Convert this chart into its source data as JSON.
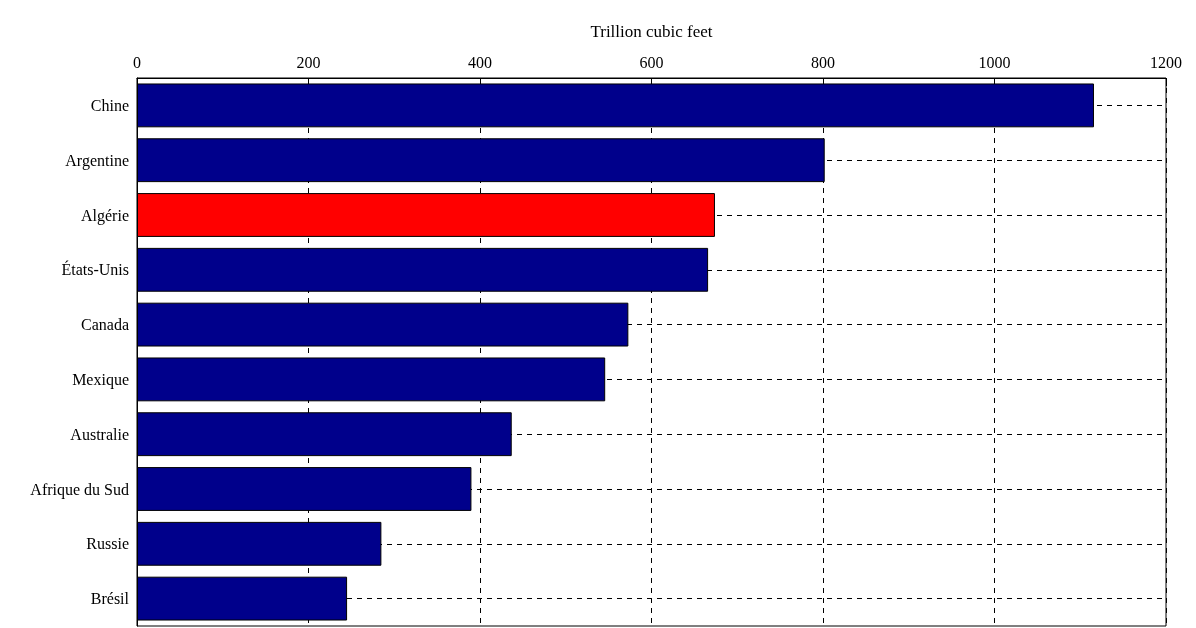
{
  "chart_data": {
    "type": "bar",
    "orientation": "horizontal",
    "xlabel": "Trillion cubic feet",
    "categories": [
      "Chine",
      "Argentine",
      "Algérie",
      "États-Unis",
      "Canada",
      "Mexique",
      "Australie",
      "Afrique du Sud",
      "Russie",
      "Brésil"
    ],
    "values": [
      1116,
      802,
      674,
      666,
      573,
      546,
      437,
      390,
      285,
      245
    ],
    "colors": [
      "#00008b",
      "#00008b",
      "#ff0000",
      "#00008b",
      "#00008b",
      "#00008b",
      "#00008b",
      "#00008b",
      "#00008b",
      "#00008b"
    ],
    "xlim": [
      0,
      1200
    ],
    "xticks": [
      0,
      200,
      400,
      600,
      800,
      1000,
      1200
    ],
    "grid": true
  }
}
